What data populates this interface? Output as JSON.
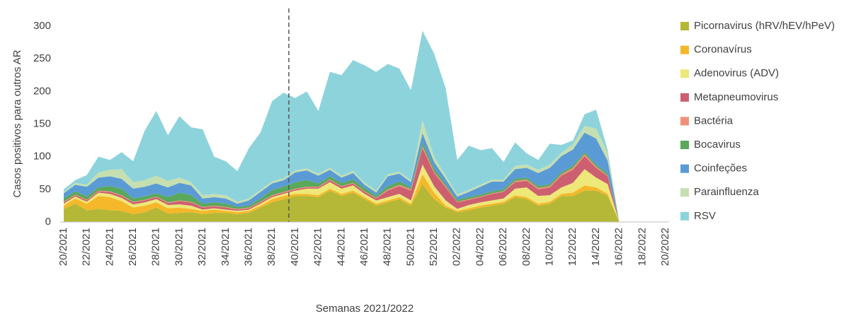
{
  "chart_data": {
    "type": "stacked_area",
    "x_label": "Semanas 2021/2022",
    "y_label": "Casos positivos para outros AR",
    "categories": [
      "20/2021",
      null,
      "22/2021",
      null,
      "24/2021",
      null,
      "26/2021",
      null,
      "28/2021",
      null,
      "30/2021",
      null,
      "32/2021",
      null,
      "34/2021",
      null,
      "36/2021",
      null,
      "38/2021",
      null,
      "40/2021",
      null,
      "42/2021",
      null,
      "44/2021",
      null,
      "46/2021",
      null,
      "48/2021",
      null,
      "50/2021",
      null,
      "52/2021",
      null,
      "02/2022",
      null,
      "04/2022",
      null,
      "06/2022",
      null,
      "08/2022",
      null,
      "10/2022",
      null,
      "12/2022",
      null,
      "14/2022",
      null,
      "16/2022",
      null,
      "18/2022",
      null,
      "20/2022"
    ],
    "ylim": [
      0,
      300
    ],
    "yticks": [
      0,
      50,
      100,
      150,
      200,
      250,
      300
    ],
    "series": [
      {
        "name": "Picornavirus (hRV/hEV/hPeV)",
        "color": "#b5b836",
        "values": [
          20,
          28,
          18,
          20,
          18,
          17,
          12,
          15,
          22,
          13,
          14,
          15,
          12,
          14,
          14,
          12,
          14,
          22,
          30,
          35,
          40,
          40,
          38,
          48,
          40,
          45,
          35,
          25,
          30,
          35,
          25,
          58,
          35,
          22,
          15,
          18,
          22,
          25,
          28,
          38,
          35,
          25,
          28,
          40,
          40,
          48,
          48,
          40,
          0,
          null,
          null,
          null,
          null
        ]
      },
      {
        "name": "Coronavírus",
        "color": "#f5b82a",
        "values": [
          5,
          8,
          10,
          20,
          20,
          15,
          10,
          10,
          8,
          8,
          8,
          5,
          5,
          5,
          3,
          3,
          3,
          3,
          5,
          5,
          3,
          3,
          3,
          3,
          3,
          3,
          3,
          3,
          3,
          3,
          3,
          15,
          10,
          3,
          2,
          3,
          3,
          3,
          3,
          3,
          3,
          3,
          3,
          3,
          5,
          8,
          5,
          3,
          0,
          null,
          null,
          null,
          null
        ]
      },
      {
        "name": "Adenovirus (ADV)",
        "color": "#ede878",
        "values": [
          3,
          3,
          3,
          5,
          5,
          5,
          5,
          5,
          5,
          5,
          5,
          5,
          2,
          2,
          2,
          2,
          2,
          3,
          3,
          3,
          5,
          8,
          10,
          10,
          8,
          8,
          5,
          5,
          5,
          5,
          5,
          15,
          10,
          8,
          3,
          5,
          5,
          5,
          5,
          10,
          15,
          12,
          10,
          10,
          15,
          25,
          15,
          15,
          0,
          null,
          null,
          null,
          null
        ]
      },
      {
        "name": "Metapneumovirus",
        "color": "#cc6070",
        "values": [
          2,
          2,
          2,
          2,
          3,
          3,
          3,
          3,
          3,
          3,
          5,
          5,
          3,
          3,
          3,
          2,
          2,
          2,
          2,
          2,
          2,
          2,
          2,
          3,
          3,
          3,
          3,
          3,
          10,
          12,
          15,
          25,
          20,
          20,
          10,
          8,
          8,
          10,
          10,
          10,
          10,
          10,
          12,
          18,
          20,
          20,
          15,
          12,
          0,
          null,
          null,
          null,
          null
        ]
      },
      {
        "name": "Bactéria",
        "color": "#f0907a",
        "values": [
          1,
          1,
          1,
          1,
          1,
          1,
          1,
          1,
          1,
          1,
          1,
          1,
          1,
          1,
          1,
          1,
          1,
          1,
          1,
          1,
          1,
          1,
          1,
          1,
          1,
          1,
          1,
          1,
          2,
          2,
          2,
          3,
          2,
          2,
          1,
          1,
          1,
          1,
          1,
          2,
          2,
          2,
          2,
          2,
          3,
          3,
          2,
          1,
          0,
          null,
          null,
          null,
          null
        ]
      },
      {
        "name": "Bocavirus",
        "color": "#5aa85a",
        "values": [
          5,
          5,
          5,
          5,
          8,
          10,
          5,
          5,
          5,
          8,
          12,
          10,
          5,
          5,
          5,
          3,
          3,
          5,
          8,
          8,
          10,
          10,
          5,
          5,
          5,
          5,
          5,
          3,
          5,
          5,
          3,
          5,
          5,
          3,
          3,
          3,
          3,
          3,
          3,
          3,
          3,
          3,
          3,
          3,
          3,
          3,
          3,
          3,
          0,
          null,
          null,
          null,
          null
        ]
      },
      {
        "name": "Coinfeções",
        "color": "#5b9bd5",
        "values": [
          8,
          10,
          15,
          15,
          15,
          15,
          15,
          15,
          15,
          15,
          15,
          15,
          8,
          8,
          8,
          5,
          8,
          10,
          10,
          10,
          15,
          15,
          12,
          10,
          8,
          10,
          5,
          5,
          15,
          12,
          8,
          15,
          10,
          8,
          5,
          8,
          12,
          15,
          12,
          15,
          15,
          20,
          25,
          25,
          25,
          30,
          40,
          20,
          0,
          null,
          null,
          null,
          null
        ]
      },
      {
        "name": "Parainfluenza",
        "color": "#c5dfb0",
        "values": [
          2,
          3,
          3,
          8,
          10,
          15,
          10,
          10,
          12,
          10,
          8,
          5,
          5,
          5,
          5,
          3,
          3,
          3,
          3,
          3,
          3,
          3,
          3,
          3,
          3,
          3,
          3,
          3,
          3,
          3,
          3,
          20,
          8,
          5,
          3,
          3,
          3,
          3,
          3,
          5,
          5,
          5,
          5,
          5,
          8,
          10,
          15,
          12,
          0,
          null,
          null,
          null,
          null
        ]
      },
      {
        "name": "RSV",
        "color": "#8dd3dc",
        "values": [
          4,
          4,
          15,
          24,
          15,
          26,
          32,
          76,
          99,
          70,
          94,
          84,
          101,
          57,
          52,
          47,
          77,
          88,
          123,
          131,
          111,
          118,
          96,
          147,
          154,
          170,
          180,
          182,
          169,
          158,
          138,
          137,
          158,
          134,
          53,
          68,
          53,
          48,
          27,
          36,
          17,
          15,
          32,
          12,
          6,
          18,
          29,
          4,
          0,
          null,
          null,
          null,
          null
        ]
      }
    ]
  }
}
